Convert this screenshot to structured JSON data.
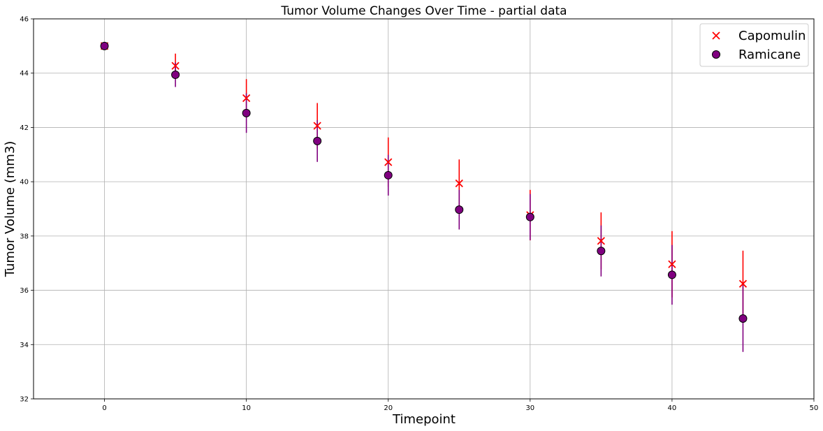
{
  "chart_data": {
    "type": "scatter",
    "title": "Tumor Volume Changes Over Time - partial data",
    "xlabel": "Timepoint",
    "ylabel": "Tumor Volume (mm3)",
    "xlim": [
      -5,
      50
    ],
    "ylim": [
      32,
      46
    ],
    "xticks": [
      0,
      10,
      20,
      30,
      40,
      50
    ],
    "yticks": [
      32,
      34,
      36,
      38,
      40,
      42,
      44,
      46
    ],
    "grid": true,
    "legend_position": "top-right",
    "x": [
      0,
      5,
      10,
      15,
      20,
      25,
      30,
      35,
      40,
      45
    ],
    "series": [
      {
        "name": "Capomulin",
        "marker": "x",
        "color": "#ff0000",
        "values": [
          45.0,
          44.27,
          43.08,
          42.06,
          40.72,
          39.94,
          38.77,
          37.82,
          36.96,
          36.24
        ],
        "errors": [
          0.0,
          0.45,
          0.7,
          0.84,
          0.91,
          0.88,
          0.93,
          1.05,
          1.22,
          1.22
        ]
      },
      {
        "name": "Ramicane",
        "marker": "o",
        "color": "#800080",
        "values": [
          45.0,
          43.94,
          42.53,
          41.5,
          40.24,
          38.97,
          38.7,
          37.45,
          36.57,
          34.96
        ],
        "errors": [
          0.0,
          0.45,
          0.73,
          0.77,
          0.75,
          0.73,
          0.85,
          0.94,
          1.1,
          1.23
        ]
      }
    ]
  }
}
